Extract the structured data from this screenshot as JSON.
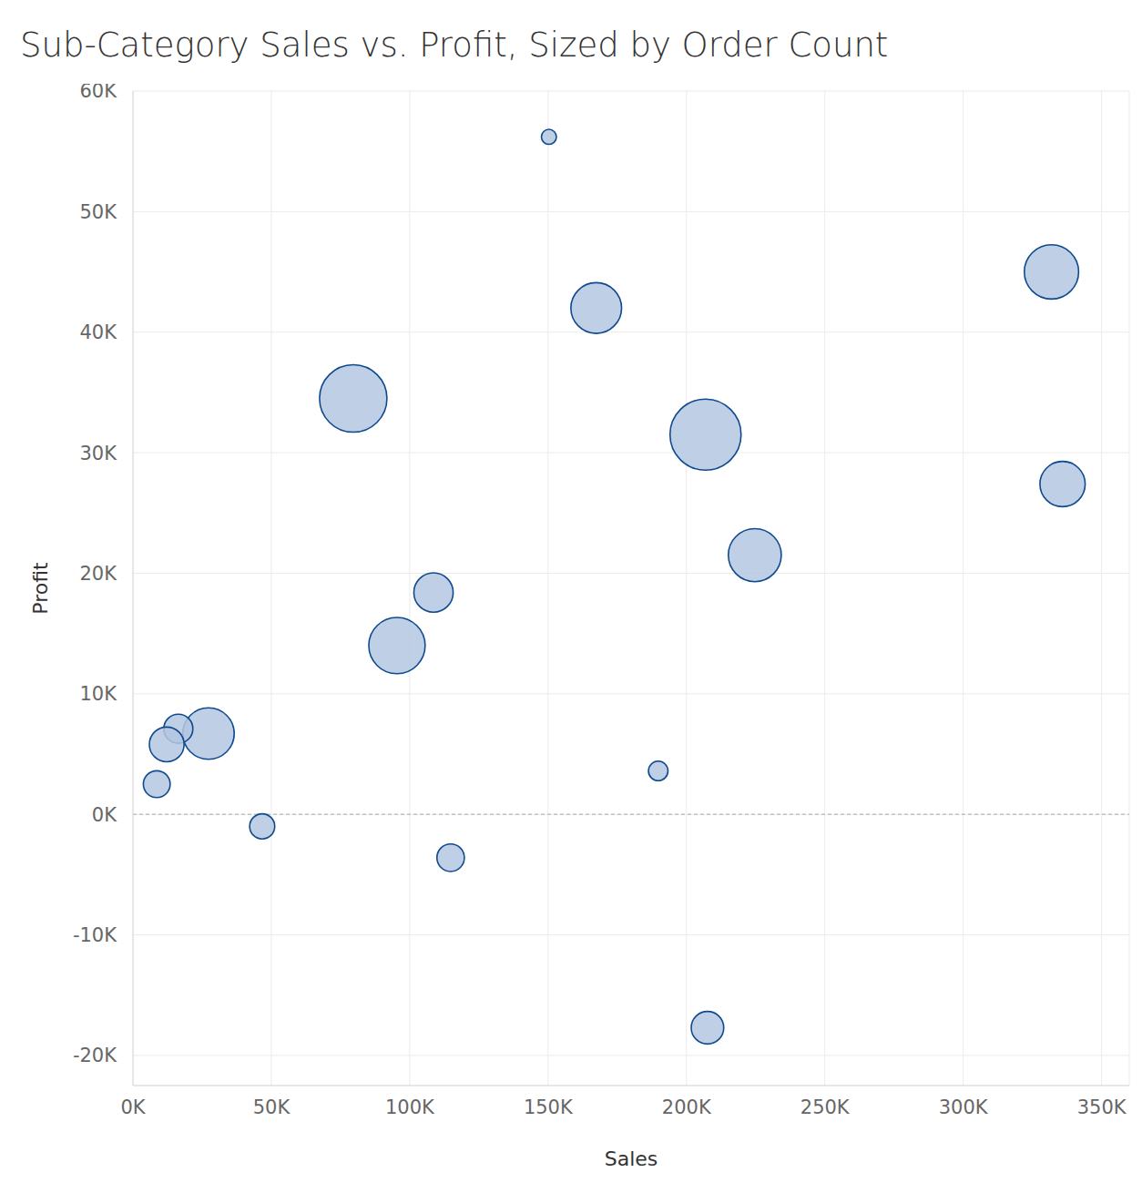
{
  "chart_data": {
    "type": "scatter",
    "title": "Sub-Category Sales vs. Profit, Sized by Order Count",
    "x_label": "Sales",
    "y_label": "Profit",
    "x": [
      150300,
      167400,
      331900,
      79600,
      206900,
      335900,
      224700,
      108600,
      95400,
      27300,
      16400,
      12200,
      8600,
      46700,
      114800,
      189800,
      207600
    ],
    "values": [
      56200,
      42000,
      45000,
      34500,
      31500,
      27400,
      21500,
      18400,
      14000,
      6700,
      7100,
      5800,
      2500,
      -1000,
      -3600,
      3600,
      -17700
    ],
    "sizes": [
      68,
      775,
      889,
      1370,
      1523,
      617,
      846,
      466,
      957,
      796,
      254,
      364,
      217,
      190,
      228,
      115,
      319
    ],
    "color": "#b4c7e0",
    "xlim": [
      0,
      360000
    ],
    "xticks": [
      {
        "value": 0,
        "label": "0K"
      },
      {
        "value": 50000,
        "label": "50K"
      },
      {
        "value": 100000,
        "label": "100K"
      },
      {
        "value": 150000,
        "label": "150K"
      },
      {
        "value": 200000,
        "label": "200K"
      },
      {
        "value": 250000,
        "label": "250K"
      },
      {
        "value": 300000,
        "label": "300K"
      },
      {
        "value": 350000,
        "label": "350K"
      }
    ],
    "ylim": [
      -22500,
      60000
    ],
    "yticks": [
      {
        "value": -20000,
        "label": "-20K"
      },
      {
        "value": -10000,
        "label": "-10K"
      },
      {
        "value": 0,
        "label": "0K"
      },
      {
        "value": 10000,
        "label": "10K"
      },
      {
        "value": 20000,
        "label": "20K"
      },
      {
        "value": 30000,
        "label": "30K"
      },
      {
        "value": 40000,
        "label": "40K"
      },
      {
        "value": 50000,
        "label": "50K"
      },
      {
        "value": 60000,
        "label": "60K"
      }
    ],
    "grid": true
  }
}
